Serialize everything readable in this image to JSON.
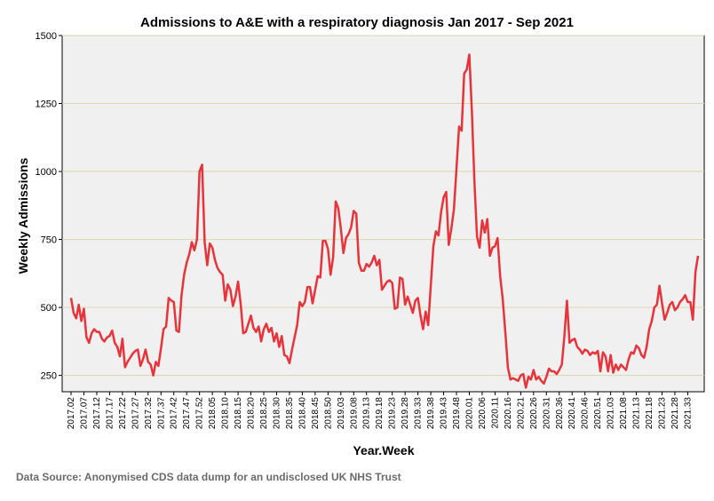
{
  "chart_data": {
    "type": "line",
    "title": "Admissions to A&E with a respiratory diagnosis Jan 2017 - Sep 2021",
    "xlabel": "Year.Week",
    "ylabel": "Weekly Admissions",
    "ylim": [
      190,
      1500
    ],
    "yticks": [
      250,
      500,
      750,
      1000,
      1250,
      1500
    ],
    "ytick_labels": [
      "250",
      "500",
      "750",
      "1000",
      "1250",
      "1500"
    ],
    "xtick_labels": [
      "2017.02",
      "2017.07",
      "2017.12",
      "2017.17",
      "2017.22",
      "2017.27",
      "2017.32",
      "2017.37",
      "2017.42",
      "2017.47",
      "2017.52",
      "2018.05",
      "2018.10",
      "2018.15",
      "2018.20",
      "2018.25",
      "2018.30",
      "2018.35",
      "2018.40",
      "2018.45",
      "2018.50",
      "2019.03",
      "2019.08",
      "2019.13",
      "2019.18",
      "2019.23",
      "2019.28",
      "2019.33",
      "2019.38",
      "2019.43",
      "2019.48",
      "2020.01",
      "2020.06",
      "2020.11",
      "2020.16",
      "2020.21",
      "2020.26",
      "2020.31",
      "2020.36",
      "2020.41",
      "2020.46",
      "2020.51",
      "2021.03",
      "2021.08",
      "2021.13",
      "2021.18",
      "2021.23",
      "2021.28",
      "2021.33"
    ],
    "grid": true,
    "series": [
      {
        "color": "#e8333a",
        "values": [
          535,
          480,
          460,
          510,
          450,
          495,
          390,
          370,
          405,
          420,
          410,
          410,
          385,
          375,
          390,
          395,
          415,
          370,
          355,
          320,
          385,
          280,
          300,
          315,
          330,
          340,
          345,
          285,
          310,
          345,
          300,
          290,
          250,
          300,
          285,
          350,
          420,
          430,
          535,
          525,
          520,
          415,
          410,
          545,
          620,
          665,
          695,
          740,
          710,
          750,
          1000,
          1025,
          740,
          655,
          735,
          720,
          675,
          645,
          630,
          620,
          525,
          585,
          565,
          505,
          540,
          595,
          515,
          405,
          410,
          440,
          470,
          425,
          410,
          430,
          375,
          420,
          440,
          410,
          425,
          375,
          405,
          355,
          395,
          325,
          320,
          295,
          345,
          390,
          435,
          520,
          505,
          520,
          575,
          575,
          515,
          565,
          615,
          610,
          745,
          745,
          715,
          620,
          685,
          890,
          865,
          790,
          700,
          755,
          770,
          795,
          855,
          845,
          665,
          635,
          635,
          660,
          650,
          665,
          690,
          655,
          675,
          565,
          580,
          595,
          600,
          590,
          495,
          500,
          610,
          605,
          510,
          540,
          510,
          480,
          525,
          535,
          470,
          420,
          485,
          435,
          580,
          725,
          780,
          765,
          850,
          905,
          925,
          730,
          790,
          860,
          1010,
          1165,
          1150,
          1360,
          1375,
          1430,
          1220,
          960,
          760,
          720,
          820,
          775,
          825,
          690,
          720,
          725,
          755,
          615,
          530,
          410,
          280,
          235,
          240,
          235,
          230,
          250,
          255,
          205,
          245,
          235,
          270,
          235,
          245,
          230,
          220,
          245,
          275,
          265,
          265,
          255,
          270,
          290,
          395,
          525,
          370,
          380,
          385,
          355,
          345,
          330,
          345,
          340,
          325,
          335,
          330,
          340,
          265,
          335,
          320,
          265,
          325,
          260,
          290,
          270,
          290,
          280,
          270,
          310,
          335,
          330,
          360,
          350,
          325,
          315,
          355,
          420,
          450,
          500,
          510,
          580,
          515,
          455,
          480,
          510,
          520,
          490,
          500,
          520,
          530,
          545,
          520,
          520,
          455,
          630,
          690
        ]
      }
    ]
  },
  "source_note": "Data Source: Anonymised CDS data dump for an undisclosed UK NHS Trust",
  "colors": {
    "plot_bg": "#f0f0f0",
    "grid": "#d9d9aa",
    "line": "#e8333a"
  }
}
